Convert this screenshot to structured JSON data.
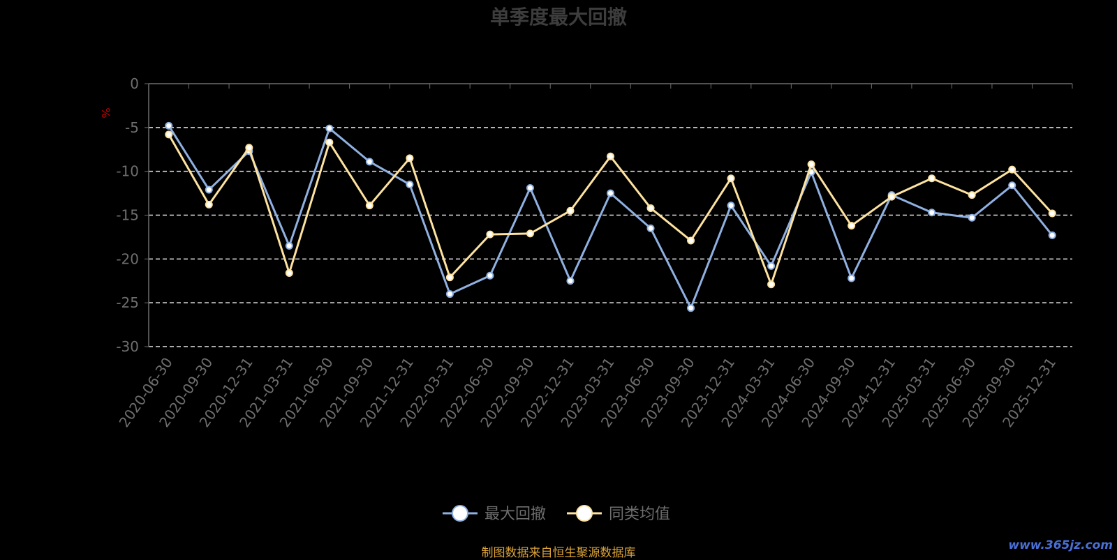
{
  "chart_data": {
    "type": "line",
    "title": "单季度最大回撤",
    "ylabel": "%",
    "ylim": [
      -30,
      0
    ],
    "yticks": [
      0,
      -5,
      -10,
      -15,
      -20,
      -25,
      -30
    ],
    "grid": true,
    "legend_position": "bottom",
    "categories": [
      "2020-06-30",
      "2020-09-30",
      "2020-12-31",
      "2021-03-31",
      "2021-06-30",
      "2021-09-30",
      "2021-12-31",
      "2022-03-31",
      "2022-06-30",
      "2022-09-30",
      "2022-12-31",
      "2023-03-31",
      "2023-06-30",
      "2023-09-30",
      "2023-12-31",
      "2024-03-31",
      "2024-06-30",
      "2024-09-30",
      "2024-12-31",
      "2025-03-31",
      "2025-06-30",
      "2025-09-30",
      "2025-12-31"
    ],
    "series": [
      {
        "name": "最大回撤",
        "color": "#8fb0e0",
        "values": [
          -4.8,
          -12.1,
          -7.7,
          -18.5,
          -5.1,
          -8.9,
          -11.5,
          -24.0,
          -21.9,
          -11.9,
          -22.5,
          -12.5,
          -16.5,
          -25.6,
          -13.9,
          -20.8,
          -10.1,
          -22.2,
          -12.7,
          -14.7,
          -15.3,
          -11.6,
          -17.3
        ]
      },
      {
        "name": "同类均值",
        "color": "#fde2a0",
        "values": [
          -5.8,
          -13.8,
          -7.3,
          -21.6,
          -6.7,
          -13.9,
          -8.5,
          -22.1,
          -17.2,
          -17.1,
          -14.5,
          -8.3,
          -14.2,
          -17.9,
          -10.8,
          -22.9,
          -9.2,
          -16.2,
          -12.9,
          -10.8,
          -12.7,
          -9.8,
          -14.8
        ]
      }
    ]
  },
  "source_text": "制图数据来自恒生聚源数据库",
  "watermark_text": "www.365jz.com"
}
